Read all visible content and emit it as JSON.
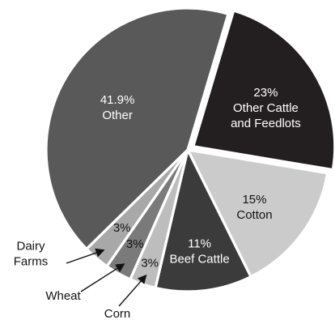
{
  "chart_data": {
    "type": "pie",
    "slices": [
      {
        "label": "Other",
        "value": 41.9,
        "value_label": "41.9%",
        "color": "#595959",
        "text_color": "#ffffff"
      },
      {
        "label": "Other Cattle\nand Feedlots",
        "value": 23,
        "value_label": "23%",
        "color": "#231f20",
        "text_color": "#ffffff"
      },
      {
        "label": "Cotton",
        "value": 15,
        "value_label": "15%",
        "color": "#cbcbcb",
        "text_color": "#111111"
      },
      {
        "label": "Beef Cattle",
        "value": 11,
        "value_label": "11%",
        "color": "#3b3b3b",
        "text_color": "#ffffff"
      },
      {
        "label": "Corn",
        "value": 3,
        "value_label": "3%",
        "color": "#bdbdbd",
        "text_color": "#111111"
      },
      {
        "label": "Wheat",
        "value": 3,
        "value_label": "3%",
        "color": "#7a7a7a",
        "text_color": "#111111"
      },
      {
        "label": "Dairy\nFarms",
        "value": 3,
        "value_label": "3%",
        "color": "#a8a8a8",
        "text_color": "#111111"
      }
    ],
    "exploded_slice": "Other Cattle\nand Feedlots",
    "label_colors": {
      "outer_text": "#111111",
      "arrow": "#111111"
    }
  }
}
